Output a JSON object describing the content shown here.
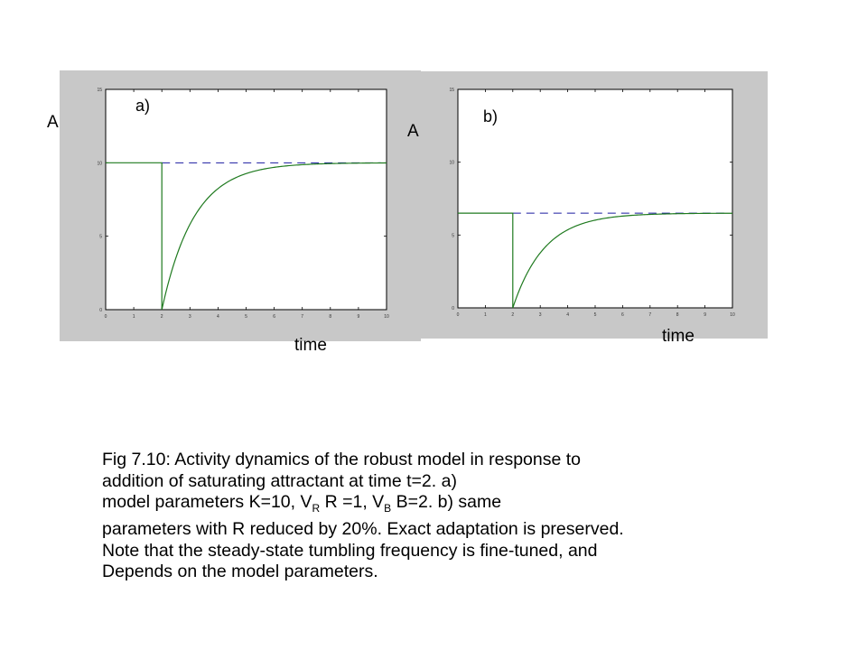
{
  "chart_data": [
    {
      "type": "line",
      "panel_label": "a)",
      "ylabel": "A",
      "xlabel": "time",
      "xlim": [
        0,
        10
      ],
      "ylim": [
        0,
        15
      ],
      "xticks": [
        "0",
        "1",
        "2",
        "3",
        "4",
        "5",
        "6",
        "7",
        "8",
        "9",
        "10"
      ],
      "yticks": [
        "0",
        "5",
        "10",
        "15"
      ],
      "steady_state": 10,
      "step_time": 2,
      "tau": 1.15,
      "series": [
        {
          "color": "#1f7a1f",
          "style": "solid"
        },
        {
          "color": "#1a1aa0",
          "style": "dashed"
        }
      ]
    },
    {
      "type": "line",
      "panel_label": "b)",
      "ylabel": "A",
      "xlabel": "time",
      "xlim": [
        0,
        10
      ],
      "ylim": [
        0,
        15
      ],
      "xticks": [
        "0",
        "1",
        "2",
        "3",
        "4",
        "5",
        "6",
        "7",
        "8",
        "9",
        "10"
      ],
      "yticks": [
        "0",
        "5",
        "10",
        "15"
      ],
      "steady_state": 6.5,
      "step_time": 2,
      "tau": 1.15,
      "series": [
        {
          "color": "#1f7a1f",
          "style": "solid"
        },
        {
          "color": "#1a1aa0",
          "style": "dashed"
        }
      ]
    }
  ],
  "caption": {
    "line1": "Fig 7.10: Activity dynamics of the robust model in response to",
    "line2": "addition of saturating attractant at time t=2. a)",
    "line3_a": "model parameters K=10, V",
    "line3_sub1": "R",
    "line3_b": " R =1, V",
    "line3_sub2": "B",
    "line3_c": " B=2. b) same",
    "line4": "parameters with R reduced by 20%. Exact adaptation is preserved.",
    "line5": "Note that the steady-state tumbling frequency is fine-tuned, and",
    "line6": "Depends on the model parameters."
  }
}
